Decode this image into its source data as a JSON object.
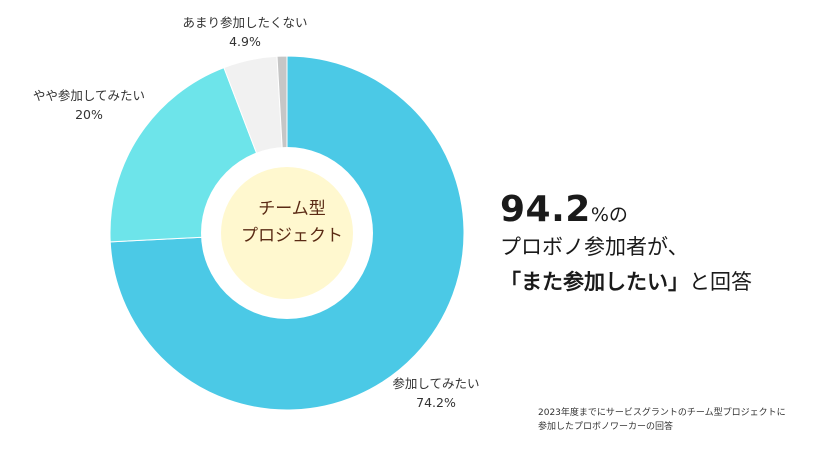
{
  "chart_data": {
    "type": "pie",
    "donut": true,
    "categories": [
      "参加してみたい",
      "やや参加してみたい",
      "あまり参加したくない",
      ""
    ],
    "values": [
      74.2,
      20,
      4.9,
      0.9
    ],
    "value_labels": [
      "74.2%",
      "20%",
      "4.9%",
      ""
    ],
    "colors": [
      "#4bc9e6",
      "#6de4ea",
      "#f1f1f1",
      "#c6c6c6"
    ],
    "center_fill": "#fff8cf"
  },
  "center_label": {
    "line1": "チーム型",
    "line2": "プロジェクト"
  },
  "headline": {
    "percent": "94.2",
    "percent_suffix": "%の",
    "line2": "プロボノ参加者が、",
    "quote": "「また参加したい」",
    "line3_suffix": "と回答"
  },
  "footnote": {
    "line1": "2023年度までにサービスグラントのチーム型プロジェクトに",
    "line2": "参加したプロボノワーカーの回答"
  }
}
